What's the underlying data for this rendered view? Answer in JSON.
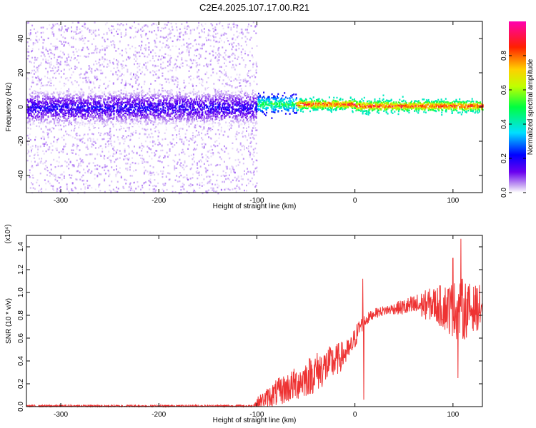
{
  "figure": {
    "title": "C2E4.2025.107.17.00.R21"
  },
  "chart_data": [
    {
      "type": "heatmap",
      "xlabel": "Height of straight line (km)",
      "ylabel": "Frequency (Hz)",
      "xlim": [
        -335,
        130
      ],
      "ylim": [
        -50,
        50
      ],
      "x_ticks": [
        -300,
        -200,
        -100,
        0,
        100
      ],
      "y_ticks": [
        -40,
        -20,
        0,
        20,
        40
      ],
      "colorbar": {
        "label": "Normalized spectral amplitude",
        "range": [
          0.0,
          1.0
        ],
        "ticks": [
          0.0,
          0.2,
          0.4,
          0.6,
          0.8
        ],
        "colormap": "rainbow (purple-blue-cyan-green-yellow-red-magenta)"
      },
      "bands": [
        {
          "x_range": [
            -335,
            -100
          ],
          "freq_center": 0,
          "core_halfwidth": 10,
          "scatter_halfwidth": 50,
          "amplitude": [
            0.0,
            0.25
          ]
        },
        {
          "x_range": [
            -100,
            -60
          ],
          "freq_center": 2,
          "core_halfwidth": 5,
          "amplitude": [
            0.2,
            0.6
          ]
        },
        {
          "x_range": [
            -60,
            0
          ],
          "freq_center": 2,
          "core_halfwidth": 3,
          "amplitude": [
            0.4,
            1.0
          ]
        },
        {
          "x_range": [
            0,
            130
          ],
          "freq_center": 1,
          "core_halfwidth": 3,
          "amplitude": [
            0.4,
            1.0
          ]
        }
      ]
    },
    {
      "type": "line",
      "xlabel": "Height of straight line (km)",
      "ylabel": "SNR (10 * v/v)",
      "y_multiplier": "(x10⁴)",
      "xlim": [
        -335,
        130
      ],
      "ylim": [
        0,
        1.5
      ],
      "x_ticks": [
        -300,
        -200,
        -100,
        0,
        100
      ],
      "y_ticks": [
        0.0,
        0.2,
        0.4,
        0.6,
        0.8,
        1.0,
        1.2,
        1.4
      ],
      "color": "#ee3333",
      "envelope": {
        "x": [
          -335,
          -105,
          -100,
          -80,
          -60,
          -40,
          -20,
          -5,
          0,
          5,
          10,
          20,
          40,
          60,
          80,
          100,
          110,
          120,
          130
        ],
        "y_mean": [
          0.005,
          0.005,
          0.03,
          0.12,
          0.2,
          0.3,
          0.4,
          0.5,
          0.6,
          0.7,
          0.75,
          0.82,
          0.86,
          0.88,
          0.9,
          0.85,
          0.85,
          0.86,
          0.87
        ],
        "y_noise": [
          0.01,
          0.01,
          0.05,
          0.12,
          0.15,
          0.18,
          0.15,
          0.1,
          0.1,
          0.08,
          0.06,
          0.04,
          0.05,
          0.1,
          0.15,
          0.25,
          0.28,
          0.2,
          0.2
        ]
      },
      "spikes": [
        {
          "x": 8,
          "y": 1.12
        },
        {
          "x": 9,
          "y": 0.06
        },
        {
          "x": 108,
          "y": 1.47
        },
        {
          "x": 100,
          "y": 1.3
        },
        {
          "x": 105,
          "y": 0.25
        }
      ]
    }
  ]
}
